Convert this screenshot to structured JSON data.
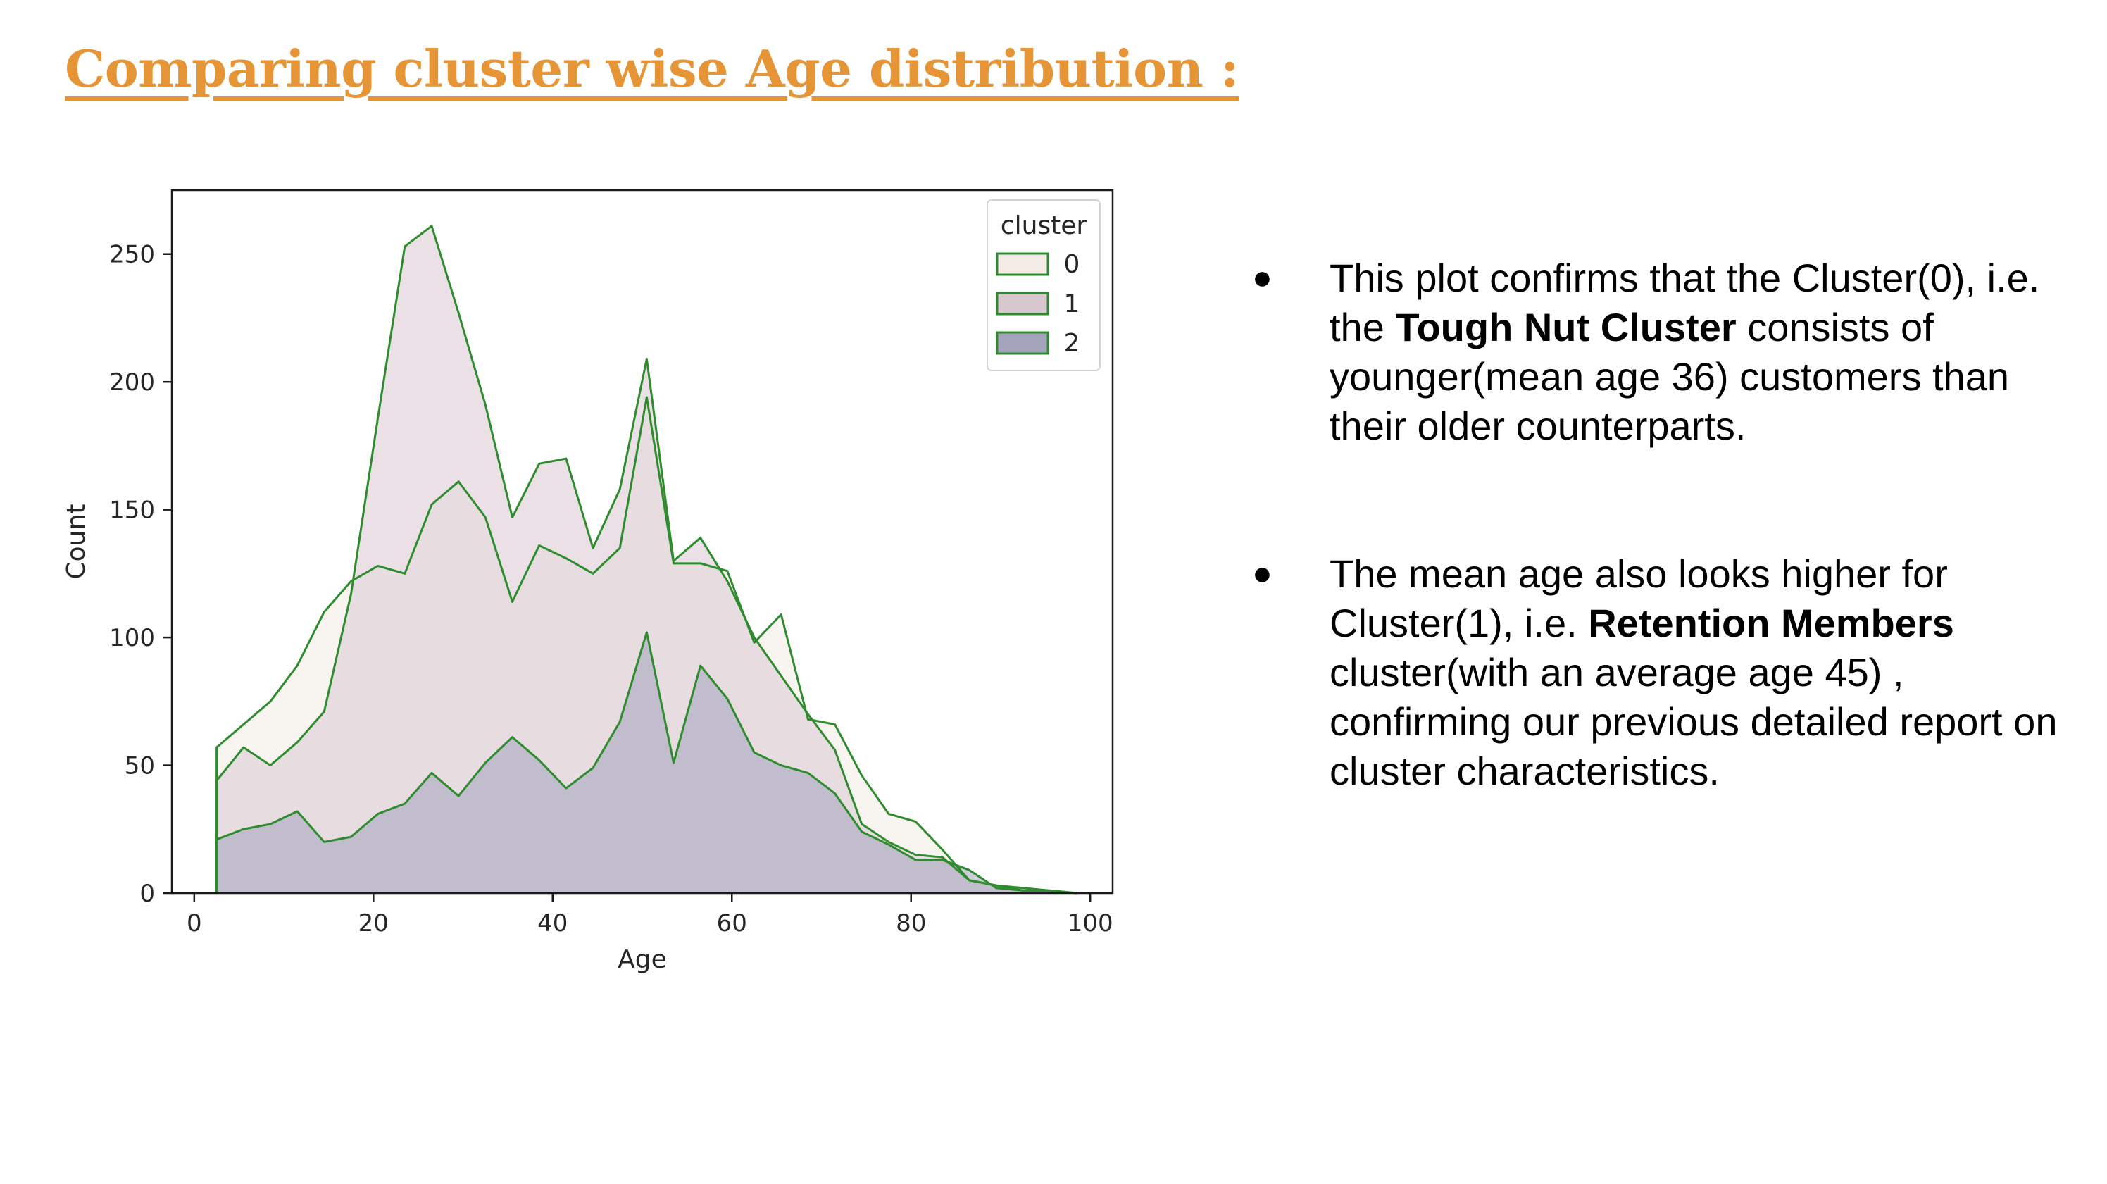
{
  "slide": {
    "title": "Comparing cluster wise Age distribution :"
  },
  "colors": {
    "title": "#e59436",
    "line": "#2e8b2e",
    "fill_cluster_0": "#f3ece6",
    "fill_cluster_1": "#d8c6cf",
    "fill_cluster_2": "#a4a4bc",
    "overlap_0_1": "#d9c9cd",
    "overlap_2_over_1": "#c2bfcd"
  },
  "notes": [
    {
      "bullet": "●",
      "parts": [
        {
          "text": "This plot confirms that the Cluster(0), i.e. the ",
          "bold": false
        },
        {
          "text": "Tough Nut Cluster",
          "bold": true
        },
        {
          "text": " consists of younger(mean age 36) customers than their older counterparts.",
          "bold": false
        }
      ]
    },
    {
      "bullet": "●",
      "parts": [
        {
          "text": "The mean age also looks higher for Cluster(1), i.e. ",
          "bold": false
        },
        {
          "text": "Retention Members",
          "bold": true
        },
        {
          "text": " cluster(with an average age 45) , confirming our previous detailed report on cluster characteristics.",
          "bold": false
        }
      ]
    }
  ],
  "chart_data": {
    "type": "area",
    "xlabel": "Age",
    "ylabel": "Count",
    "xlim": [
      -2.5,
      102.5
    ],
    "ylim": [
      0,
      275
    ],
    "xticks": [
      0,
      20,
      40,
      60,
      80,
      100
    ],
    "yticks": [
      0,
      50,
      100,
      150,
      200,
      250
    ],
    "grid": false,
    "legend": {
      "title": "cluster",
      "position": "top-right",
      "entries": [
        "0",
        "1",
        "2"
      ]
    },
    "series": [
      {
        "name": "0",
        "x": [
          2.5,
          5.5,
          8.5,
          11.5,
          14.5,
          17.5,
          20.5,
          23.5,
          26.5,
          29.5,
          32.5,
          35.5,
          38.5,
          41.5,
          44.5,
          47.5,
          50.5,
          53.5,
          56.5,
          59.5,
          62.5,
          65.5,
          68.5,
          71.5,
          74.5,
          77.5,
          80.5,
          83.5,
          86.5,
          89.5,
          92.5,
          95.5,
          98.5
        ],
        "values": [
          57,
          66,
          75,
          89,
          110,
          122,
          128,
          125,
          152,
          161,
          147,
          114,
          136,
          131,
          125,
          135,
          194,
          129,
          129,
          126,
          98,
          109,
          68,
          66,
          46,
          31,
          28,
          17,
          5,
          3,
          2,
          1,
          0
        ]
      },
      {
        "name": "1",
        "x": [
          2.5,
          5.5,
          8.5,
          11.5,
          14.5,
          17.5,
          20.5,
          23.5,
          26.5,
          29.5,
          32.5,
          35.5,
          38.5,
          41.5,
          44.5,
          47.5,
          50.5,
          53.5,
          56.5,
          59.5,
          62.5,
          65.5,
          68.5,
          71.5,
          74.5,
          77.5,
          80.5,
          83.5,
          86.5,
          89.5,
          92.5,
          95.5,
          98.5
        ],
        "values": [
          44,
          57,
          50,
          59,
          71,
          117,
          186,
          253,
          261,
          227,
          191,
          147,
          168,
          170,
          135,
          158,
          209,
          130,
          139,
          122,
          100,
          85,
          70,
          56,
          27,
          20,
          15,
          14,
          5,
          3,
          1,
          1,
          0
        ]
      },
      {
        "name": "2",
        "x": [
          2.5,
          5.5,
          8.5,
          11.5,
          14.5,
          17.5,
          20.5,
          23.5,
          26.5,
          29.5,
          32.5,
          35.5,
          38.5,
          41.5,
          44.5,
          47.5,
          50.5,
          53.5,
          56.5,
          59.5,
          62.5,
          65.5,
          68.5,
          71.5,
          74.5,
          77.5,
          80.5,
          83.5,
          86.5,
          89.5,
          92.5,
          95.5,
          98.5
        ],
        "values": [
          21,
          25,
          27,
          32,
          20,
          22,
          31,
          35,
          47,
          38,
          51,
          61,
          52,
          41,
          49,
          67,
          102,
          51,
          89,
          76,
          55,
          50,
          47,
          39,
          24,
          19,
          13,
          13,
          9,
          2,
          1,
          1,
          0
        ]
      }
    ]
  }
}
